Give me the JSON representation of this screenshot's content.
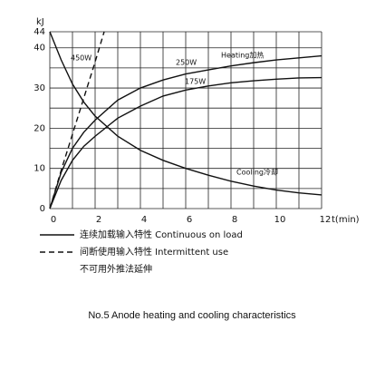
{
  "chart_data": {
    "type": "line",
    "title": "No.5 Anode heating and cooling characteristics",
    "y_label": "kJ",
    "x_label": "t(min)",
    "xlim": [
      0,
      12
    ],
    "xticks": [
      0,
      2,
      4,
      6,
      8,
      10,
      12
    ],
    "ylim": [
      0,
      44
    ],
    "yticks": [
      0,
      10,
      20,
      30,
      40,
      44
    ],
    "grid": true,
    "series": [
      {
        "name": "250W",
        "color": "#111111",
        "dashed": false,
        "x": [
          0,
          0.5,
          1,
          1.5,
          2,
          3,
          4,
          5,
          6,
          7,
          8,
          9,
          10,
          11,
          12
        ],
        "values": [
          0,
          9,
          15,
          19,
          22,
          27,
          30,
          32,
          33.5,
          34.5,
          35.5,
          36.3,
          37,
          37.5,
          38
        ]
      },
      {
        "name": "175W",
        "color": "#111111",
        "dashed": false,
        "x": [
          0,
          0.5,
          1,
          1.5,
          2,
          3,
          4,
          5,
          6,
          7,
          8,
          9,
          10,
          11,
          12
        ],
        "values": [
          0,
          7,
          12,
          15.5,
          18,
          22.5,
          25.5,
          28,
          29.5,
          30.5,
          31.3,
          31.8,
          32.2,
          32.5,
          32.6
        ]
      },
      {
        "name": "450W",
        "color": "#111111",
        "dashed": true,
        "x": [
          0,
          0.5,
          1,
          1.5,
          2,
          2.4
        ],
        "values": [
          0,
          9.5,
          18.5,
          27.5,
          36.5,
          44
        ]
      },
      {
        "name": "Cooling冷却",
        "color": "#111111",
        "dashed": false,
        "x": [
          0,
          0.5,
          1,
          1.5,
          2,
          3,
          4,
          5,
          6,
          7,
          8,
          9,
          10,
          11,
          12
        ],
        "values": [
          44,
          37,
          31,
          26.5,
          23,
          18,
          14.5,
          12,
          10,
          8.3,
          6.8,
          5.6,
          4.6,
          3.9,
          3.4
        ]
      }
    ],
    "annotations": [
      "Heating加热"
    ],
    "legend_notes": [
      {
        "text": "连续加载输入特性 Continuous on load",
        "dashed": false
      },
      {
        "text": "间断使用输入特性 Intermittent use",
        "dashed": true
      },
      {
        "text": "不可用外推法延伸",
        "dashed": null
      }
    ]
  }
}
